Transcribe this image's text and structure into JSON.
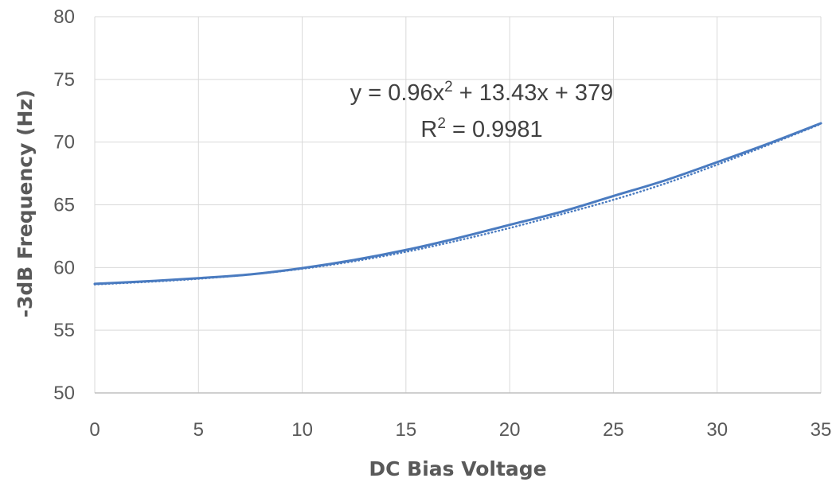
{
  "chart_data": {
    "type": "line",
    "title": "",
    "xlabel": "DC Bias Voltage",
    "ylabel": "-3dB Frequency (Hz)",
    "xlim": [
      0,
      35
    ],
    "ylim": [
      50,
      80
    ],
    "x_ticks": [
      "0",
      "5",
      "10",
      "15",
      "20",
      "25",
      "30",
      "35"
    ],
    "y_ticks": [
      "50",
      "55",
      "60",
      "65",
      "70",
      "75",
      "80"
    ],
    "grid": true,
    "legend": "none",
    "series": [
      {
        "style": "solid",
        "color": "#4a7bc0",
        "x": [
          0,
          2.5,
          5,
          7.5,
          10,
          12.5,
          15,
          17.5,
          20,
          22.5,
          25,
          27.5,
          30,
          32.5,
          35
        ],
        "y": [
          58.7,
          58.9,
          59.15,
          59.45,
          59.95,
          60.6,
          61.4,
          62.35,
          63.4,
          64.45,
          65.7,
          66.95,
          68.4,
          69.9,
          71.5
        ]
      },
      {
        "style": "dotted",
        "color": "#4a7bc0",
        "x": [
          0,
          2.5,
          5,
          7.5,
          10,
          12.5,
          15,
          17.5,
          20,
          22.5,
          25,
          27.5,
          30,
          32.5,
          35
        ],
        "y": [
          58.65,
          58.85,
          59.1,
          59.45,
          59.9,
          60.5,
          61.25,
          62.15,
          63.15,
          64.25,
          65.4,
          66.7,
          68.2,
          69.8,
          71.45
        ]
      }
    ],
    "trendline": {
      "equation_main": "y = 0.96x",
      "equation_sup": "2",
      "equation_rest": " + 13.43x + 379",
      "r2_main": "R",
      "r2_sup": "2",
      "r2_rest": " = 0.9981"
    }
  }
}
